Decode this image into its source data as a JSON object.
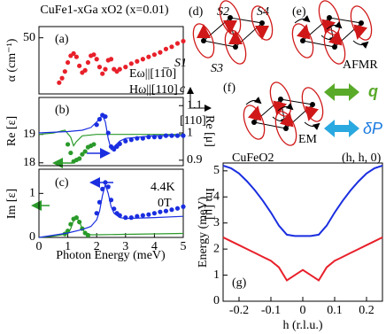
{
  "chart_data": [
    {
      "type": "scatter",
      "title": "CuFe1-xGa xO2 (x=0.01)",
      "panel_label": "(a)",
      "ylabel": "α (cm⁻¹)",
      "annotations": [
        "Eω||[11̅0]",
        "Hω||[110]"
      ],
      "ylim": [
        0,
        60
      ],
      "yticks": [
        50
      ],
      "xlim": [
        0,
        5
      ],
      "series": [
        {
          "type": "scatter",
          "color": "#e8202a",
          "x": [
            0.7,
            0.8,
            0.9,
            1.0,
            1.1,
            1.2,
            1.3,
            1.4,
            1.5,
            1.6,
            1.7,
            1.8,
            1.9,
            2.0,
            2.1,
            2.2,
            2.3,
            2.4,
            2.5,
            2.6,
            2.7,
            2.8,
            3.0,
            3.2,
            3.4,
            3.6,
            3.8,
            4.0,
            4.2,
            4.4,
            4.6,
            4.8,
            5.0
          ],
          "values": [
            10,
            14,
            20,
            28,
            34,
            36,
            33,
            25,
            19,
            21,
            28,
            34,
            35,
            31,
            24,
            18,
            22,
            30,
            31,
            22,
            20,
            22,
            24,
            27,
            29,
            31,
            33,
            35,
            37,
            40,
            42,
            45,
            47
          ]
        }
      ]
    },
    {
      "type": "scatter",
      "panel_label": "(b)",
      "ylabel": "Re [ε]",
      "y2label": "Re [μ]",
      "ylim": [
        17.9,
        20.3
      ],
      "yticks": [
        18,
        19
      ],
      "y2lim": [
        0.88,
        1.13
      ],
      "y2ticks": [
        0.9,
        1,
        1.1
      ],
      "xlim": [
        0,
        5
      ],
      "series": [
        {
          "type": "line",
          "color": "#2a9a2a",
          "x": [
            0,
            0.5,
            0.9,
            1.1,
            1.2,
            1.3,
            1.5,
            2,
            3,
            4,
            5
          ],
          "values": [
            19.0,
            19.05,
            19.15,
            18.9,
            18.6,
            18.75,
            18.95,
            19.0,
            19.0,
            19.0,
            19.0
          ]
        },
        {
          "type": "scatter",
          "color": "#2a9a2a",
          "x": [
            1.0,
            1.1,
            1.2,
            1.3,
            1.4,
            1.5,
            1.6,
            1.7,
            1.8,
            1.9
          ],
          "values": [
            18.65,
            18.35,
            18.05,
            18.1,
            18.15,
            18.3,
            18.4,
            18.55,
            18.6,
            18.65
          ]
        },
        {
          "type": "line",
          "color": "#1a2ee0",
          "axis": "y2",
          "x": [
            0,
            1,
            1.5,
            1.8,
            2.0,
            2.2,
            2.3,
            2.4,
            2.5,
            2.6,
            2.8,
            3,
            4,
            5
          ],
          "values": [
            1.0,
            1.005,
            1.01,
            1.02,
            1.04,
            1.065,
            1.04,
            0.98,
            0.94,
            0.95,
            0.97,
            0.98,
            0.99,
            0.99
          ]
        },
        {
          "type": "scatter",
          "color": "#1a2ee0",
          "axis": "y2",
          "x": [
            2.0,
            2.1,
            2.2,
            2.3,
            2.4,
            2.5,
            2.6,
            2.7,
            2.8,
            3.0,
            3.2,
            3.4,
            3.6,
            3.8,
            4.0,
            4.2,
            4.4,
            4.6,
            4.8,
            5.0
          ],
          "values": [
            1.03,
            1.05,
            1.065,
            1.06,
            1.0,
            0.95,
            0.94,
            0.95,
            0.96,
            0.97,
            0.975,
            0.98,
            0.98,
            0.985,
            0.985,
            0.985,
            0.99,
            0.99,
            0.99,
            0.99
          ]
        }
      ]
    },
    {
      "type": "scatter",
      "panel_label": "(c)",
      "ylabel": "Im [ε]",
      "y2label": "Im [μ]",
      "xlabel": "Photon Energy (meV)",
      "annotations": [
        "4.4K",
        "0T"
      ],
      "ylim": [
        0,
        1.55
      ],
      "yticks": [
        0,
        1
      ],
      "y2lim": [
        0,
        1.55
      ],
      "xlim": [
        0,
        5
      ],
      "xticks": [
        0,
        1,
        2,
        3,
        4,
        5
      ],
      "series": [
        {
          "type": "line",
          "color": "#2a9a2a",
          "x": [
            0,
            0.5,
            1.0,
            1.1,
            1.2,
            1.3,
            1.4,
            1.5,
            1.6,
            1.8,
            2,
            3,
            4,
            5
          ],
          "values": [
            0,
            0.03,
            0.08,
            0.2,
            0.38,
            0.45,
            0.36,
            0.2,
            0.1,
            0.06,
            0.06,
            0.07,
            0.08,
            0.09
          ]
        },
        {
          "type": "scatter",
          "color": "#2a9a2a",
          "x": [
            0.9,
            1.0,
            1.1,
            1.2,
            1.3,
            1.4,
            1.5,
            1.6,
            1.7
          ],
          "values": [
            0.08,
            0.15,
            0.3,
            0.42,
            0.45,
            0.35,
            0.2,
            0.1,
            0.05
          ]
        },
        {
          "type": "line",
          "color": "#1a2ee0",
          "axis": "y2",
          "x": [
            0,
            1,
            1.5,
            1.8,
            2.0,
            2.1,
            2.2,
            2.3,
            2.4,
            2.5,
            2.6,
            2.8,
            3,
            4,
            5
          ],
          "values": [
            0,
            0.1,
            0.18,
            0.25,
            0.4,
            0.6,
            0.95,
            1.2,
            1.0,
            0.7,
            0.55,
            0.45,
            0.43,
            0.45,
            0.48
          ]
        },
        {
          "type": "scatter",
          "color": "#1a2ee0",
          "axis": "y2",
          "x": [
            2.0,
            2.1,
            2.2,
            2.3,
            2.4,
            2.5,
            2.6,
            2.7,
            2.8,
            3.0,
            3.2,
            3.4,
            3.6,
            3.8,
            4.0,
            4.2,
            4.4,
            4.6,
            4.8,
            5.0
          ],
          "values": [
            0.55,
            0.8,
            1.1,
            1.25,
            1.15,
            0.85,
            0.65,
            0.55,
            0.5,
            0.45,
            0.45,
            0.48,
            0.5,
            0.52,
            0.55,
            0.58,
            0.6,
            0.63,
            0.66,
            0.7
          ]
        }
      ]
    },
    {
      "type": "line",
      "title": "CuFeO2",
      "subtitle": "(h, h, 0)",
      "panel_label": "(g)",
      "ylabel": "Energy (meV)",
      "xlabel": "h (r.l.u.)",
      "xlim": [
        -0.25,
        0.25
      ],
      "xticks": [
        -0.2,
        -0.1,
        0,
        0.1,
        0.2
      ],
      "ylim": [
        0,
        5.3
      ],
      "yticks": [
        0,
        1,
        2,
        3,
        4,
        5
      ],
      "series": [
        {
          "type": "line",
          "color": "#1a2ee0",
          "x": [
            -0.25,
            -0.225,
            -0.2,
            -0.175,
            -0.15,
            -0.125,
            -0.1,
            -0.075,
            -0.05,
            -0.025,
            0,
            0.025,
            0.05,
            0.075,
            0.1,
            0.125,
            0.15,
            0.175,
            0.2,
            0.225,
            0.25
          ],
          "values": [
            5.2,
            5.1,
            4.9,
            4.6,
            4.25,
            3.85,
            3.4,
            2.9,
            2.55,
            2.5,
            2.5,
            2.5,
            2.55,
            2.9,
            3.4,
            3.85,
            4.25,
            4.6,
            4.9,
            5.1,
            5.2
          ]
        },
        {
          "type": "line",
          "color": "#e8202a",
          "x": [
            -0.25,
            -0.225,
            -0.2,
            -0.175,
            -0.15,
            -0.125,
            -0.1,
            -0.075,
            -0.05,
            -0.025,
            0,
            0.025,
            0.05,
            0.075,
            0.1,
            0.125,
            0.15,
            0.175,
            0.2,
            0.225,
            0.25
          ],
          "values": [
            2.45,
            2.3,
            2.15,
            2.0,
            1.85,
            1.7,
            1.55,
            1.3,
            0.8,
            1.0,
            1.2,
            1.0,
            0.8,
            1.3,
            1.55,
            1.7,
            1.85,
            2.0,
            2.15,
            2.3,
            2.45
          ]
        }
      ]
    }
  ],
  "diagram": {
    "d_label": "(d)",
    "e_label": "(e)",
    "f_label": "(f)",
    "spins": [
      "S1",
      "S2",
      "S3",
      "S4"
    ],
    "afmr": "AFMR",
    "em": "EM",
    "axis_c": "c",
    "axis_110": "[110]",
    "q": "q",
    "dp": "δP"
  }
}
